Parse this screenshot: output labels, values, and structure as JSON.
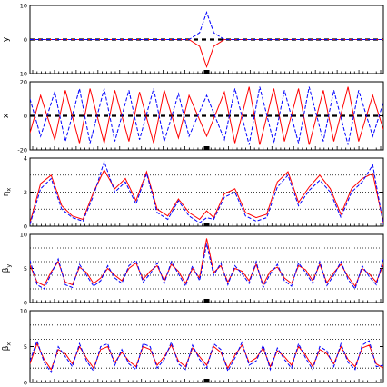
{
  "figure": {
    "note": "Five stacked panels plotted against position along a beamline (no x tick labels shown). Red solid = first series, blue dashed = second series.",
    "colors": {
      "series_a": "#ff0000",
      "series_b": "#0000ff",
      "axis": "#000000",
      "guide": "#000000"
    }
  },
  "chart_data": [
    {
      "type": "line",
      "title": "",
      "ylabel": "y",
      "xlabel": "",
      "ylim": [
        -10,
        10
      ],
      "yticks": [
        "10",
        "0",
        "-10"
      ],
      "ytick_values": [
        10,
        0,
        -10
      ],
      "guide_lines": [
        0
      ],
      "guide_style": "dashed",
      "x": [
        0,
        10,
        20,
        30,
        40,
        45,
        48,
        50,
        52,
        55,
        60,
        70,
        80,
        90,
        100
      ],
      "series": [
        {
          "style": "solid",
          "color": "#ff0000",
          "values": [
            0,
            0,
            0,
            0,
            0,
            0,
            -2,
            -8,
            -2,
            0,
            0,
            0,
            0,
            0,
            0
          ]
        },
        {
          "style": "dashed",
          "color": "#0000ff",
          "values": [
            0,
            0,
            0,
            0,
            0,
            0,
            2,
            8,
            2,
            0,
            0,
            0,
            0,
            0,
            0
          ]
        }
      ]
    },
    {
      "type": "line",
      "title": "",
      "ylabel": "x",
      "xlabel": "",
      "ylim": [
        -20,
        20
      ],
      "yticks": [
        "20",
        "0",
        "-20"
      ],
      "ytick_values": [
        20,
        0,
        -20
      ],
      "guide_lines": [
        0
      ],
      "guide_style": "dashed",
      "x": [
        0,
        3,
        7,
        10,
        14,
        17,
        21,
        24,
        28,
        31,
        35,
        38,
        42,
        45,
        50,
        55,
        58,
        62,
        65,
        69,
        72,
        76,
        79,
        83,
        86,
        90,
        93,
        97,
        100
      ],
      "series": [
        {
          "style": "solid",
          "color": "#ff0000",
          "values": [
            -10,
            12,
            -14,
            15,
            -16,
            16,
            -16,
            15,
            -15,
            14,
            -16,
            15,
            -13,
            12,
            -12,
            14,
            -16,
            17,
            -17,
            16,
            -15,
            16,
            -17,
            15,
            -15,
            17,
            -15,
            12,
            -8
          ]
        },
        {
          "style": "dashed",
          "color": "#0000ff",
          "values": [
            10,
            -12,
            14,
            -15,
            16,
            -16,
            16,
            -15,
            15,
            -14,
            16,
            -15,
            13,
            -12,
            12,
            -14,
            16,
            -17,
            17,
            -16,
            15,
            -16,
            17,
            -15,
            15,
            -17,
            15,
            -12,
            8
          ]
        }
      ]
    },
    {
      "type": "line",
      "title": "",
      "ylabel": "η_x",
      "xlabel": "",
      "ylim": [
        0,
        4
      ],
      "yticks": [
        "4",
        "2",
        "0"
      ],
      "ytick_values": [
        4,
        2,
        0
      ],
      "guide_lines": [
        1,
        2,
        3
      ],
      "guide_style": "dotted",
      "x": [
        0,
        3,
        6,
        9,
        12,
        15,
        18,
        21,
        24,
        27,
        30,
        33,
        36,
        39,
        42,
        45,
        48,
        50,
        52,
        55,
        58,
        61,
        64,
        67,
        70,
        73,
        76,
        79,
        82,
        85,
        88,
        91,
        94,
        97,
        100
      ],
      "series": [
        {
          "style": "solid",
          "color": "#ff0000",
          "values": [
            0.2,
            2.5,
            3.0,
            1.2,
            0.6,
            0.4,
            2.0,
            3.3,
            2.2,
            2.8,
            1.5,
            3.2,
            1.0,
            0.6,
            1.6,
            0.8,
            0.4,
            0.9,
            0.5,
            1.9,
            2.2,
            0.8,
            0.5,
            0.7,
            2.6,
            3.2,
            1.4,
            2.3,
            3.0,
            2.2,
            0.7,
            2.2,
            2.8,
            3.1,
            0.2
          ]
        },
        {
          "style": "dashed",
          "color": "#0000ff",
          "values": [
            0.1,
            2.2,
            2.8,
            1.0,
            0.5,
            0.3,
            1.8,
            3.8,
            2.0,
            2.6,
            1.3,
            3.1,
            0.8,
            0.4,
            1.5,
            0.6,
            0.2,
            0.5,
            0.4,
            1.7,
            2.0,
            0.6,
            0.3,
            0.5,
            2.3,
            3.0,
            1.2,
            2.1,
            2.7,
            2.0,
            0.5,
            2.0,
            2.6,
            3.6,
            0.1
          ]
        }
      ]
    },
    {
      "type": "line",
      "title": "",
      "ylabel": "β_y",
      "xlabel": "",
      "ylim": [
        0,
        10
      ],
      "yticks": [
        "10",
        "5",
        "0"
      ],
      "ytick_values": [
        10,
        5,
        0
      ],
      "guide_lines": [
        2,
        4,
        6,
        8
      ],
      "guide_style": "dotted",
      "x": [
        0,
        2,
        4,
        6,
        8,
        10,
        12,
        14,
        16,
        18,
        20,
        22,
        24,
        26,
        28,
        30,
        32,
        34,
        36,
        38,
        40,
        42,
        44,
        46,
        48,
        50,
        52,
        54,
        56,
        58,
        60,
        62,
        64,
        66,
        68,
        70,
        72,
        74,
        76,
        78,
        80,
        82,
        84,
        86,
        88,
        90,
        92,
        94,
        96,
        98,
        100
      ],
      "series": [
        {
          "style": "solid",
          "color": "#ff0000",
          "values": [
            5.5,
            3.0,
            2.5,
            4.5,
            6.0,
            3.0,
            2.6,
            5.2,
            4.4,
            2.8,
            3.6,
            5.0,
            4.0,
            3.2,
            5.0,
            5.8,
            3.4,
            4.6,
            5.4,
            3.2,
            5.6,
            4.6,
            2.8,
            5.0,
            3.6,
            9.4,
            4.4,
            5.4,
            3.0,
            5.0,
            4.6,
            3.2,
            5.6,
            2.6,
            4.6,
            5.2,
            3.6,
            2.8,
            5.4,
            4.8,
            3.2,
            5.6,
            2.9,
            4.4,
            5.6,
            3.8,
            2.4,
            5.0,
            4.2,
            3.0,
            5.6
          ]
        },
        {
          "style": "dashed",
          "color": "#0000ff",
          "values": [
            6.2,
            2.6,
            2.0,
            4.2,
            6.4,
            2.6,
            2.2,
            5.6,
            4.0,
            2.4,
            3.2,
            5.4,
            3.6,
            2.8,
            5.4,
            6.2,
            3.0,
            4.2,
            5.8,
            2.8,
            6.0,
            4.2,
            2.4,
            5.4,
            3.2,
            8.6,
            4.0,
            5.8,
            2.6,
            5.4,
            4.2,
            2.8,
            6.0,
            2.2,
            4.2,
            5.6,
            3.2,
            2.4,
            5.8,
            4.4,
            2.8,
            6.0,
            2.5,
            4.0,
            6.0,
            3.4,
            2.0,
            5.4,
            3.8,
            2.6,
            6.4
          ]
        }
      ]
    },
    {
      "type": "line",
      "title": "",
      "ylabel": "β_x",
      "xlabel": "",
      "ylim": [
        0,
        10
      ],
      "yticks": [
        "10",
        "5",
        "0"
      ],
      "ytick_values": [
        10,
        5,
        0
      ],
      "guide_lines": [
        2,
        4,
        6,
        8
      ],
      "guide_style": "dotted",
      "x": [
        0,
        2,
        4,
        6,
        8,
        10,
        12,
        14,
        16,
        18,
        20,
        22,
        24,
        26,
        28,
        30,
        32,
        34,
        36,
        38,
        40,
        42,
        44,
        46,
        48,
        50,
        52,
        54,
        56,
        58,
        60,
        62,
        64,
        66,
        68,
        70,
        72,
        74,
        76,
        78,
        80,
        82,
        84,
        86,
        88,
        90,
        92,
        94,
        96,
        98,
        100
      ],
      "series": [
        {
          "style": "solid",
          "color": "#ff0000",
          "values": [
            2.6,
            5.4,
            3.2,
            1.8,
            4.6,
            4.0,
            2.6,
            5.0,
            3.4,
            2.0,
            4.6,
            5.0,
            2.8,
            4.2,
            3.0,
            2.2,
            5.0,
            4.6,
            2.4,
            3.6,
            5.2,
            3.0,
            2.2,
            4.8,
            3.6,
            2.4,
            5.0,
            4.2,
            2.0,
            3.8,
            5.2,
            2.8,
            3.4,
            4.8,
            2.2,
            4.4,
            3.6,
            2.4,
            5.0,
            3.8,
            2.2,
            4.6,
            4.0,
            2.6,
            5.0,
            3.2,
            2.2,
            4.8,
            5.2,
            2.6,
            2.0
          ]
        },
        {
          "style": "dashed",
          "color": "#0000ff",
          "values": [
            3.0,
            5.8,
            2.8,
            1.4,
            5.0,
            3.6,
            2.2,
            5.4,
            3.0,
            1.6,
            5.0,
            5.4,
            2.4,
            4.6,
            2.6,
            1.8,
            5.4,
            5.0,
            2.0,
            3.2,
            5.6,
            2.6,
            1.8,
            5.2,
            3.2,
            2.0,
            5.4,
            4.6,
            1.6,
            3.4,
            5.6,
            2.4,
            3.0,
            5.2,
            1.8,
            4.8,
            3.2,
            2.0,
            5.4,
            3.4,
            1.8,
            5.0,
            4.4,
            2.2,
            5.4,
            2.8,
            1.8,
            5.2,
            5.8,
            2.2,
            2.4
          ]
        }
      ]
    }
  ]
}
